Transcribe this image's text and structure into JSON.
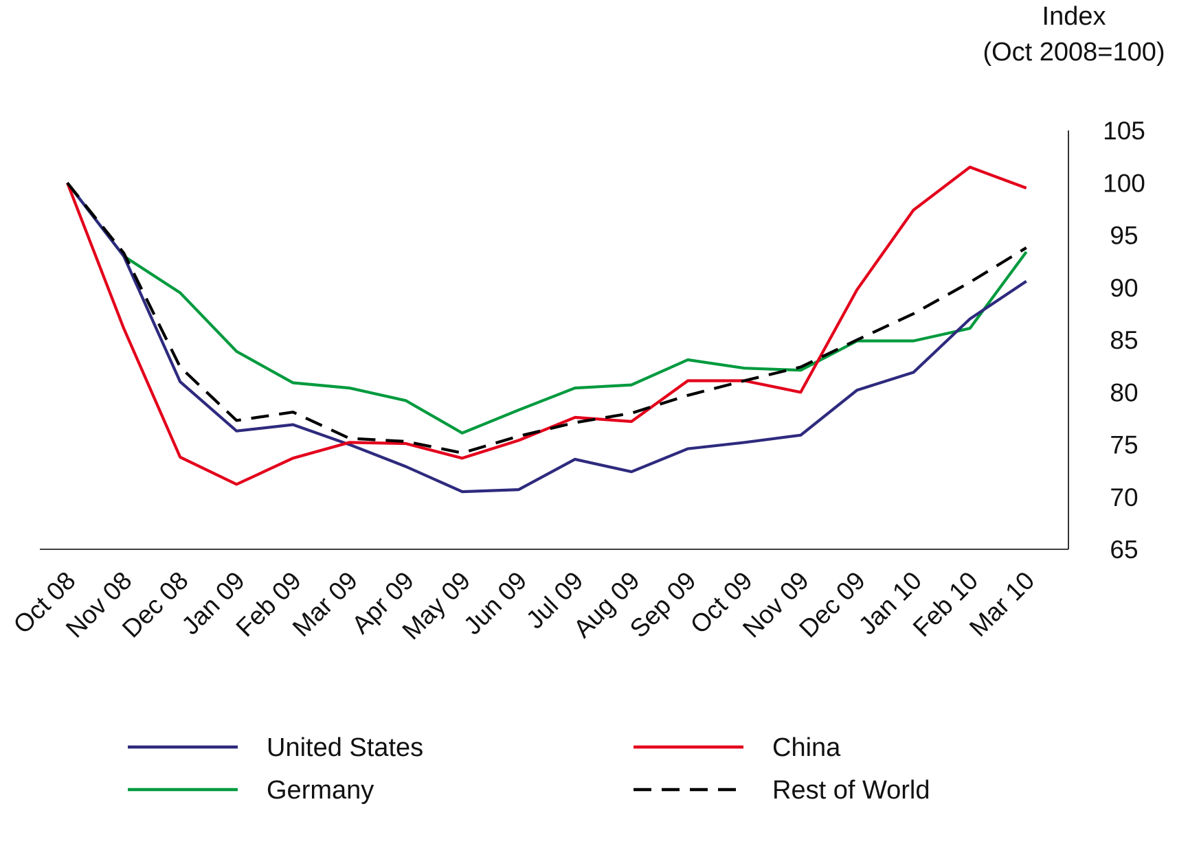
{
  "chart_data": {
    "type": "line",
    "title": "",
    "xlabel": "",
    "ylabel": "Index",
    "ylabel_sub": "(Oct 2008=100)",
    "categories": [
      "Oct 08",
      "Nov 08",
      "Dec 08",
      "Jan 09",
      "Feb 09",
      "Mar 09",
      "Apr 09",
      "May 09",
      "Jun 09",
      "Jul 09",
      "Aug 09",
      "Sep 09",
      "Oct 09",
      "Nov 09",
      "Dec 09",
      "Jan 10",
      "Feb 10",
      "Mar 10"
    ],
    "ylim": [
      65,
      105
    ],
    "yticks": [
      "105",
      "100",
      "95",
      "90",
      "85",
      "80",
      "75",
      "70",
      "65"
    ],
    "grid": false,
    "legend_position": "bottom",
    "series": [
      {
        "name": "United States",
        "color": "#2e2a7e",
        "dash": "solid",
        "values": [
          100,
          93.0,
          81.0,
          76.3,
          76.9,
          75.0,
          72.9,
          70.5,
          70.7,
          73.6,
          72.4,
          74.6,
          75.2,
          75.9,
          80.2,
          81.9,
          87.0,
          90.6
        ]
      },
      {
        "name": "China",
        "color": "#e3001b",
        "dash": "solid",
        "values": [
          100,
          86.1,
          73.8,
          71.2,
          73.7,
          75.2,
          75.1,
          73.7,
          75.4,
          77.6,
          77.2,
          81.1,
          81.1,
          80.0,
          89.8,
          97.4,
          101.5,
          99.5
        ]
      },
      {
        "name": "Germany",
        "color": "#009a3e",
        "dash": "solid",
        "values": [
          100,
          93.0,
          89.5,
          83.9,
          80.9,
          80.4,
          79.2,
          76.1,
          78.3,
          80.4,
          80.7,
          83.1,
          82.3,
          82.1,
          84.9,
          84.9,
          86.1,
          93.4
        ]
      },
      {
        "name": "Rest of World",
        "color": "#000000",
        "dash": "dashed",
        "values": [
          100,
          93.3,
          82.4,
          77.3,
          78.1,
          75.6,
          75.3,
          74.2,
          75.8,
          77.1,
          78.0,
          79.7,
          81.1,
          82.4,
          85.0,
          87.5,
          90.5,
          93.8
        ]
      }
    ]
  }
}
